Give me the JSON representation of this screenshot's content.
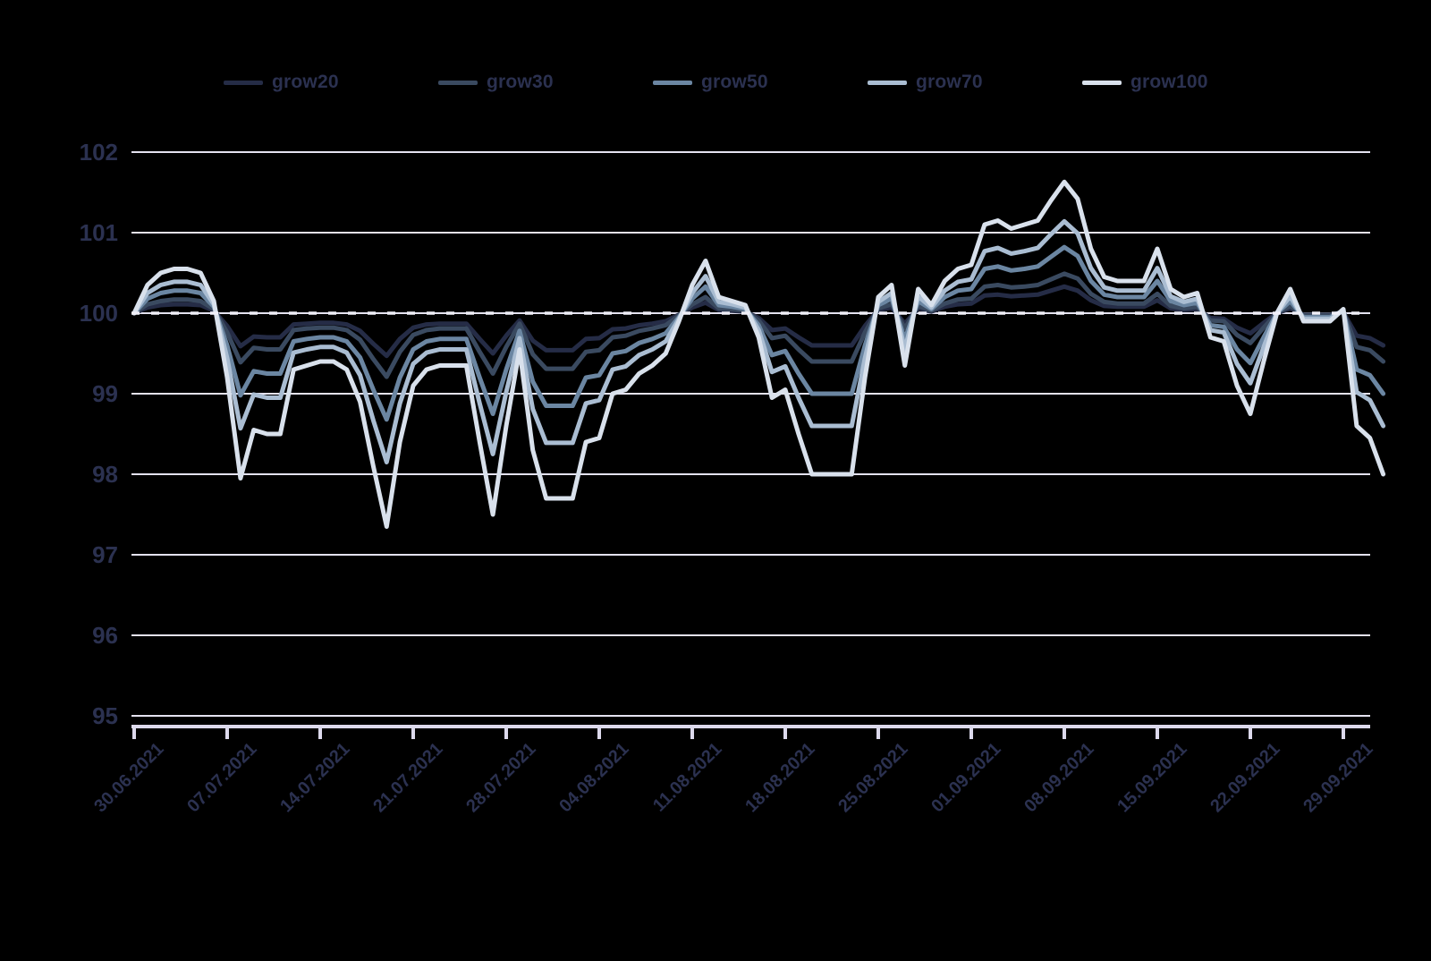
{
  "chart_data": {
    "type": "line",
    "title": "",
    "legend_position": "top",
    "grid": true,
    "background_color": "#000000",
    "grid_color": "#e4e2f0",
    "axis_color": "#dcd9ec",
    "text_color": "#2b3150",
    "reference_line": {
      "value": 100,
      "style": "dashed",
      "color": "#f0eff8"
    },
    "y_axis": {
      "ticks": [
        102,
        101,
        100,
        99,
        98,
        97,
        96,
        95
      ],
      "ylim": [
        95,
        102
      ]
    },
    "x_axis": {
      "tick_labels": [
        "30.06.2021",
        "07.07.2021",
        "14.07.2021",
        "21.07.2021",
        "28.07.2021",
        "04.08.2021",
        "11.08.2021",
        "18.08.2021",
        "25.08.2021",
        "01.09.2021",
        "08.09.2021",
        "15.09.2021",
        "22.09.2021",
        "29.09.2021"
      ],
      "tick_day_offsets": [
        0,
        7,
        14,
        21,
        28,
        35,
        42,
        49,
        56,
        63,
        70,
        77,
        84,
        91
      ],
      "days_total": 95
    },
    "series": [
      {
        "name": "grow20",
        "color": "#252c46",
        "values": [
          100,
          100.07,
          100.1,
          100.11,
          100.11,
          100.1,
          100.03,
          99.84,
          99.59,
          99.71,
          99.7,
          99.7,
          99.86,
          99.87,
          99.88,
          99.88,
          99.86,
          99.78,
          99.62,
          99.47,
          99.68,
          99.82,
          99.86,
          99.87,
          99.87,
          99.87,
          99.68,
          99.5,
          99.72,
          99.91,
          99.66,
          99.54,
          99.54,
          99.54,
          99.68,
          99.69,
          99.8,
          99.81,
          99.85,
          99.87,
          99.9,
          99.98,
          100.07,
          100.13,
          100.04,
          100.03,
          100.02,
          99.94,
          99.79,
          99.81,
          99.7,
          99.6,
          99.6,
          99.6,
          99.6,
          99.84,
          100.04,
          100.07,
          99.87,
          100.06,
          100.02,
          100.08,
          100.11,
          100.12,
          100.22,
          100.23,
          100.21,
          100.22,
          100.23,
          100.28,
          100.33,
          100.28,
          100.16,
          100.09,
          100.08,
          100.08,
          100.08,
          100.16,
          100.06,
          100.04,
          100.05,
          99.94,
          99.93,
          99.82,
          99.75,
          99.88,
          100,
          100.06,
          99.98,
          99.98,
          99.98,
          100.01,
          99.72,
          99.69,
          99.6
        ]
      },
      {
        "name": "grow30",
        "color": "#3a4a60",
        "values": [
          100,
          100.11,
          100.15,
          100.17,
          100.17,
          100.15,
          100.05,
          99.76,
          99.39,
          99.57,
          99.55,
          99.55,
          99.79,
          99.81,
          99.82,
          99.82,
          99.79,
          99.67,
          99.43,
          99.21,
          99.52,
          99.73,
          99.79,
          99.81,
          99.81,
          99.81,
          99.52,
          99.25,
          99.58,
          99.87,
          99.49,
          99.31,
          99.31,
          99.31,
          99.52,
          99.54,
          99.7,
          99.72,
          99.78,
          99.81,
          99.85,
          99.97,
          100.11,
          100.2,
          100.06,
          100.05,
          100.03,
          99.91,
          99.69,
          99.72,
          99.55,
          99.4,
          99.4,
          99.4,
          99.4,
          99.76,
          100.06,
          100.11,
          99.81,
          100.09,
          100.03,
          100.12,
          100.17,
          100.18,
          100.33,
          100.35,
          100.32,
          100.33,
          100.35,
          100.42,
          100.49,
          100.43,
          100.24,
          100.14,
          100.12,
          100.12,
          100.12,
          100.24,
          100.09,
          100.06,
          100.08,
          99.91,
          99.9,
          99.73,
          99.63,
          99.82,
          100,
          100.09,
          99.97,
          99.97,
          99.97,
          100.02,
          99.58,
          99.54,
          99.4
        ]
      },
      {
        "name": "grow50",
        "color": "#6b86a2",
        "values": [
          100,
          100.18,
          100.25,
          100.28,
          100.28,
          100.25,
          100.08,
          99.6,
          98.98,
          99.28,
          99.25,
          99.25,
          99.65,
          99.68,
          99.7,
          99.7,
          99.65,
          99.45,
          99.05,
          98.68,
          99.2,
          99.55,
          99.65,
          99.68,
          99.68,
          99.68,
          99.2,
          98.75,
          99.3,
          99.78,
          99.15,
          98.85,
          98.85,
          98.85,
          99.2,
          99.23,
          99.5,
          99.53,
          99.63,
          99.68,
          99.75,
          99.95,
          100.18,
          100.33,
          100.1,
          100.08,
          100.05,
          99.85,
          99.48,
          99.53,
          99.25,
          99,
          99,
          99,
          99,
          99.6,
          100.1,
          100.18,
          99.68,
          100.15,
          100.05,
          100.2,
          100.28,
          100.3,
          100.55,
          100.58,
          100.53,
          100.55,
          100.58,
          100.7,
          100.82,
          100.71,
          100.4,
          100.23,
          100.2,
          100.2,
          100.2,
          100.4,
          100.15,
          100.1,
          100.13,
          99.85,
          99.83,
          99.55,
          99.38,
          99.7,
          100,
          100.15,
          99.95,
          99.95,
          99.95,
          100.03,
          99.3,
          99.23,
          99
        ]
      },
      {
        "name": "grow70",
        "color": "#aabdd2",
        "values": [
          100,
          100.25,
          100.35,
          100.39,
          100.39,
          100.35,
          100.11,
          99.44,
          98.57,
          98.99,
          98.95,
          98.95,
          99.51,
          99.55,
          99.58,
          99.58,
          99.51,
          99.23,
          98.67,
          98.15,
          98.88,
          99.37,
          99.51,
          99.55,
          99.55,
          99.55,
          98.88,
          98.25,
          99.02,
          99.69,
          98.81,
          98.39,
          98.39,
          98.39,
          98.88,
          98.92,
          99.3,
          99.34,
          99.48,
          99.55,
          99.65,
          99.93,
          100.25,
          100.46,
          100.14,
          100.11,
          100.07,
          99.79,
          99.27,
          99.34,
          98.95,
          98.6,
          98.6,
          98.6,
          98.6,
          99.44,
          100.14,
          100.25,
          99.55,
          100.21,
          100.07,
          100.28,
          100.39,
          100.42,
          100.77,
          100.81,
          100.74,
          100.77,
          100.81,
          100.98,
          101.14,
          100.99,
          100.56,
          100.32,
          100.28,
          100.28,
          100.28,
          100.56,
          100.21,
          100.14,
          100.18,
          99.79,
          99.76,
          99.37,
          99.13,
          99.58,
          100,
          100.21,
          99.93,
          99.93,
          99.93,
          100.04,
          99.02,
          98.92,
          98.6
        ]
      },
      {
        "name": "grow100",
        "color": "#d9e1ec",
        "values": [
          100,
          100.35,
          100.5,
          100.55,
          100.55,
          100.5,
          100.15,
          99.2,
          97.95,
          98.55,
          98.5,
          98.5,
          99.3,
          99.35,
          99.4,
          99.4,
          99.3,
          98.9,
          98.1,
          97.35,
          98.4,
          99.1,
          99.3,
          99.35,
          99.35,
          99.35,
          98.4,
          97.5,
          98.6,
          99.55,
          98.3,
          97.7,
          97.7,
          97.7,
          98.4,
          98.45,
          99,
          99.05,
          99.25,
          99.35,
          99.5,
          99.9,
          100.35,
          100.65,
          100.2,
          100.15,
          100.1,
          99.7,
          98.95,
          99.05,
          98.5,
          98,
          98,
          98,
          98,
          99.2,
          100.2,
          100.35,
          99.35,
          100.3,
          100.1,
          100.4,
          100.55,
          100.6,
          101.1,
          101.15,
          101.05,
          101.1,
          101.15,
          101.4,
          101.63,
          101.42,
          100.8,
          100.45,
          100.4,
          100.4,
          100.4,
          100.8,
          100.3,
          100.2,
          100.25,
          99.7,
          99.65,
          99.1,
          98.75,
          99.4,
          100,
          100.3,
          99.9,
          99.9,
          99.9,
          100.05,
          98.6,
          98.45,
          98
        ]
      }
    ]
  }
}
